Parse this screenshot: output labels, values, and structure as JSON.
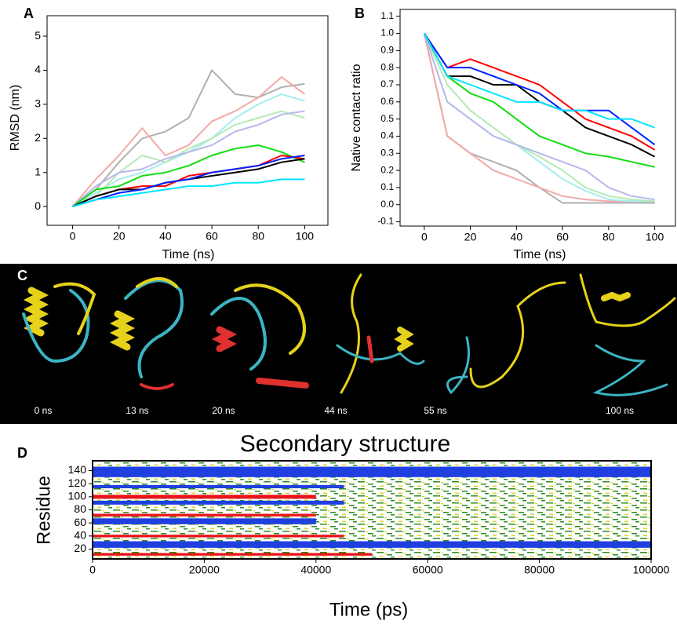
{
  "chart_data": [
    {
      "type": "line",
      "panel_label": "A",
      "ylabel": "RMSD (nm)",
      "xlabel": "Time (ns)",
      "x": [
        0,
        10,
        20,
        30,
        40,
        50,
        60,
        70,
        80,
        90,
        100
      ],
      "xlim": [
        -11,
        110
      ],
      "xticks": [
        0,
        20,
        40,
        60,
        80,
        100
      ],
      "ylim": [
        -0.55,
        5.6
      ],
      "yticks": [
        0,
        1,
        2,
        3,
        4,
        5
      ],
      "series": [
        {
          "color": "#b0b0b0",
          "values": [
            0,
            0.5,
            1.3,
            2.0,
            2.2,
            2.6,
            4.0,
            3.3,
            3.2,
            3.5,
            3.6
          ]
        },
        {
          "color": "#f2a8a8",
          "values": [
            0,
            0.8,
            1.5,
            2.3,
            1.5,
            1.8,
            2.5,
            2.8,
            3.2,
            3.8,
            3.3
          ]
        },
        {
          "color": "#a6ecec",
          "values": [
            0,
            0.4,
            0.8,
            1.0,
            1.3,
            1.6,
            2.0,
            2.6,
            3.0,
            3.3,
            3.1
          ]
        },
        {
          "color": "#b4eab4",
          "values": [
            0,
            0.3,
            1.0,
            1.5,
            1.3,
            1.7,
            2.0,
            2.4,
            2.6,
            2.8,
            2.6
          ]
        },
        {
          "color": "#b8b8ec",
          "values": [
            0,
            0.6,
            1.0,
            1.1,
            1.4,
            1.6,
            1.8,
            2.2,
            2.4,
            2.7,
            2.8
          ]
        },
        {
          "color": "#11dd11",
          "values": [
            0,
            0.5,
            0.6,
            0.9,
            1.0,
            1.2,
            1.5,
            1.7,
            1.8,
            1.6,
            1.3
          ]
        },
        {
          "color": "#ff0000",
          "values": [
            0,
            0.3,
            0.5,
            0.6,
            0.6,
            0.9,
            1.0,
            1.1,
            1.2,
            1.5,
            1.4
          ]
        },
        {
          "color": "#000000",
          "values": [
            0,
            0.3,
            0.5,
            0.5,
            0.7,
            0.8,
            0.9,
            1.0,
            1.1,
            1.3,
            1.4
          ]
        },
        {
          "color": "#0022ff",
          "values": [
            0,
            0.2,
            0.4,
            0.5,
            0.7,
            0.8,
            1.0,
            1.1,
            1.2,
            1.4,
            1.5
          ]
        },
        {
          "color": "#00e5ff",
          "values": [
            0,
            0.2,
            0.3,
            0.4,
            0.5,
            0.6,
            0.6,
            0.7,
            0.7,
            0.8,
            0.8
          ]
        }
      ]
    },
    {
      "type": "line",
      "panel_label": "B",
      "ylabel": "Native contact ratio",
      "xlabel": "Time (ns)",
      "x": [
        0,
        10,
        20,
        30,
        40,
        50,
        60,
        70,
        80,
        90,
        100
      ],
      "xlim": [
        -10.5,
        109
      ],
      "xticks": [
        0,
        20,
        40,
        60,
        80,
        100
      ],
      "ylim": [
        -0.125,
        1.14
      ],
      "yticks": [
        -0.1,
        {
          "value": 0,
          "label": "0.0"
        },
        0.1,
        0.2,
        0.3,
        0.4,
        0.5,
        0.6,
        0.7,
        0.8,
        0.9,
        {
          "value": 1,
          "label": "1.0"
        },
        1.1
      ],
      "series": [
        {
          "color": "#b0b0b0",
          "values": [
            1,
            0.4,
            0.3,
            0.25,
            0.2,
            0.1,
            0.01,
            0.01,
            0.01,
            0.01,
            0.01
          ]
        },
        {
          "color": "#f2a8a8",
          "values": [
            1,
            0.4,
            0.3,
            0.2,
            0.15,
            0.1,
            0.05,
            0.03,
            0.02,
            0.02,
            0.02
          ]
        },
        {
          "color": "#a6ecec",
          "values": [
            1,
            0.6,
            0.5,
            0.4,
            0.35,
            0.25,
            0.15,
            0.08,
            0.03,
            0.02,
            0.02
          ]
        },
        {
          "color": "#b4eab4",
          "values": [
            1,
            0.7,
            0.55,
            0.45,
            0.35,
            0.28,
            0.2,
            0.1,
            0.05,
            0.03,
            0.02
          ]
        },
        {
          "color": "#b8b8ec",
          "values": [
            1,
            0.6,
            0.5,
            0.4,
            0.35,
            0.3,
            0.25,
            0.2,
            0.1,
            0.05,
            0.03
          ]
        },
        {
          "color": "#11dd11",
          "values": [
            1,
            0.75,
            0.65,
            0.6,
            0.5,
            0.4,
            0.35,
            0.3,
            0.28,
            0.25,
            0.22
          ]
        },
        {
          "color": "#ff0000",
          "values": [
            1,
            0.8,
            0.85,
            0.8,
            0.75,
            0.7,
            0.6,
            0.5,
            0.45,
            0.4,
            0.32
          ]
        },
        {
          "color": "#000000",
          "values": [
            1,
            0.75,
            0.75,
            0.7,
            0.7,
            0.6,
            0.55,
            0.45,
            0.4,
            0.35,
            0.28
          ]
        },
        {
          "color": "#0022ff",
          "values": [
            1,
            0.8,
            0.8,
            0.75,
            0.7,
            0.65,
            0.55,
            0.55,
            0.55,
            0.45,
            0.35
          ]
        },
        {
          "color": "#00e5ff",
          "values": [
            1,
            0.75,
            0.7,
            0.65,
            0.6,
            0.6,
            0.55,
            0.55,
            0.5,
            0.5,
            0.45
          ]
        }
      ]
    },
    {
      "type": "heatmap",
      "panel_label": "D",
      "title": "Secondary structure",
      "ylabel": "Residue",
      "xlabel": "Time (ps)",
      "xlim": [
        0,
        100000
      ],
      "xticks": [
        0,
        20000,
        40000,
        60000,
        80000,
        100000
      ],
      "ylim": [
        5,
        155
      ],
      "yticks": [
        20,
        40,
        60,
        80,
        100,
        120,
        140
      ],
      "blocks": [
        {
          "color": "#1f3fe0",
          "x": [
            0,
            100000
          ],
          "y": [
            130,
            146
          ]
        },
        {
          "color": "#1f3fe0",
          "x": [
            0,
            45000
          ],
          "y": [
            113,
            118
          ]
        },
        {
          "color": "#e8141a",
          "x": [
            0,
            40000
          ],
          "y": [
            97,
            103
          ]
        },
        {
          "color": "#1f3fe0",
          "x": [
            0,
            45000
          ],
          "y": [
            88,
            94
          ]
        },
        {
          "color": "#e8141a",
          "x": [
            0,
            40000
          ],
          "y": [
            70,
            74
          ]
        },
        {
          "color": "#1f3fe0",
          "x": [
            0,
            40000
          ],
          "y": [
            58,
            67
          ]
        },
        {
          "color": "#e8141a",
          "x": [
            0,
            45000
          ],
          "y": [
            38,
            42
          ]
        },
        {
          "color": "#1f3fe0",
          "x": [
            0,
            100000
          ],
          "y": [
            22,
            32
          ]
        },
        {
          "color": "#e8141a",
          "x": [
            0,
            50000
          ],
          "y": [
            10,
            14
          ]
        }
      ]
    }
  ],
  "figure_c": {
    "label": "C",
    "snapshots": [
      "0 ns",
      "13 ns",
      "20 ns",
      "44 ns",
      "55 ns",
      "100 ns"
    ]
  }
}
